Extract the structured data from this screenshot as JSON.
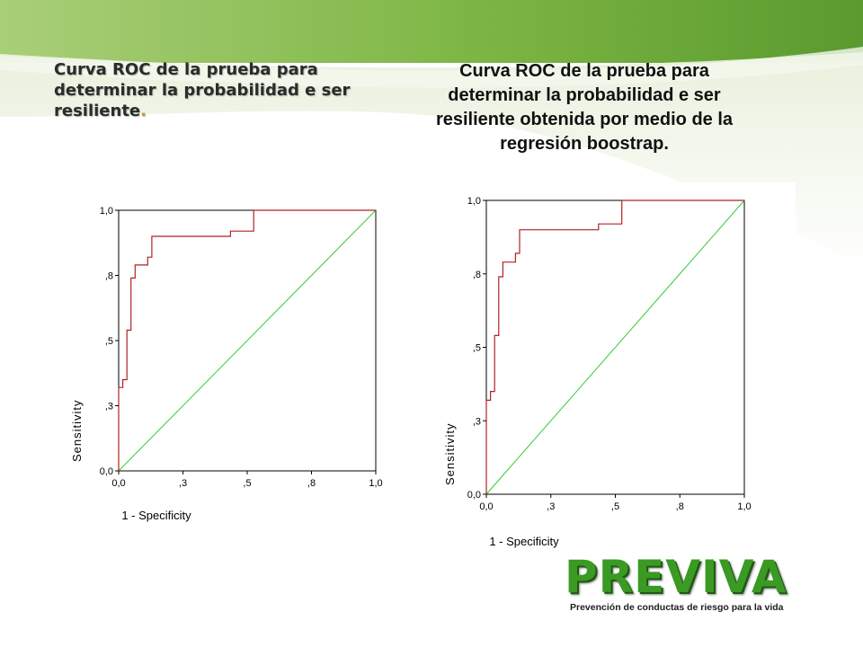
{
  "slide": {
    "left_title": "Curva ROC de la prueba para determinar la probabilidad e ser resiliente",
    "left_title_punct": ".",
    "right_title": "Curva ROC de la prueba para determinar la probabilidad e ser resiliente obtenida por medio de la regresión boostrap.",
    "logo": {
      "word": "PREVIVA",
      "tagline": "Prevención de conductas de riesgo para la vida",
      "color": "#3a9a24"
    },
    "colors": {
      "roc_curve": "#b22222",
      "reference_line": "#33cc33",
      "header_green": "#7ab648"
    }
  },
  "chart_data": [
    {
      "type": "line",
      "xlabel": "1 - Specificity",
      "ylabel": "Sensitivity",
      "xlim": [
        0,
        1
      ],
      "ylim": [
        0,
        1
      ],
      "x_ticks": [
        "0,0",
        ",3",
        ",5",
        ",8",
        "1,0"
      ],
      "y_ticks": [
        "0,0",
        ",3",
        ",5",
        ",8",
        "1,0"
      ],
      "grid": false,
      "series": [
        {
          "style": "step",
          "x": [
            0,
            0,
            0.016,
            0.016,
            0.032,
            0.032,
            0.048,
            0.048,
            0.064,
            0.064,
            0.113,
            0.113,
            0.129,
            0.129,
            0.435,
            0.435,
            0.525,
            0.525,
            1.0
          ],
          "y": [
            0,
            0.32,
            0.32,
            0.35,
            0.35,
            0.54,
            0.54,
            0.74,
            0.74,
            0.79,
            0.79,
            0.82,
            0.82,
            0.9,
            0.9,
            0.92,
            0.92,
            1.0,
            1.0
          ]
        },
        {
          "style": "diagonal",
          "x": [
            0,
            1
          ],
          "y": [
            0,
            1
          ]
        }
      ]
    },
    {
      "type": "line",
      "xlabel": "1 - Specificity",
      "ylabel": "Sensitivity",
      "xlim": [
        0,
        1
      ],
      "ylim": [
        0,
        1
      ],
      "x_ticks": [
        "0,0",
        ",3",
        ",5",
        ",8",
        "1,0"
      ],
      "y_ticks": [
        "0,0",
        ",3",
        ",5",
        ",8",
        "1,0"
      ],
      "grid": false,
      "series": [
        {
          "style": "step",
          "x": [
            0,
            0,
            0.016,
            0.016,
            0.032,
            0.032,
            0.048,
            0.048,
            0.064,
            0.064,
            0.113,
            0.113,
            0.129,
            0.129,
            0.435,
            0.435,
            0.525,
            0.525,
            1.0
          ],
          "y": [
            0,
            0.32,
            0.32,
            0.35,
            0.35,
            0.54,
            0.54,
            0.74,
            0.74,
            0.79,
            0.79,
            0.82,
            0.82,
            0.9,
            0.9,
            0.92,
            0.92,
            1.0,
            1.0
          ]
        },
        {
          "style": "diagonal",
          "x": [
            0,
            1
          ],
          "y": [
            0,
            1
          ]
        }
      ]
    }
  ]
}
